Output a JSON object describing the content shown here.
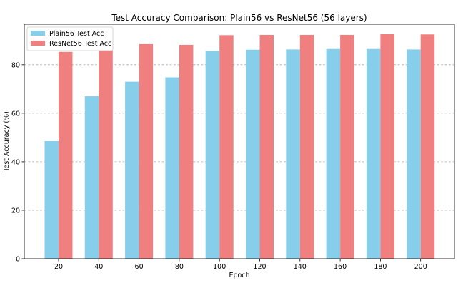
{
  "chart_data": {
    "type": "bar",
    "title": "Test Accuracy Comparison: Plain56 vs ResNet56 (56 layers)",
    "xlabel": "Epoch",
    "ylabel": "Test Accuracy (%)",
    "categories": [
      "20",
      "40",
      "60",
      "80",
      "100",
      "120",
      "140",
      "160",
      "180",
      "200"
    ],
    "series": [
      {
        "name": "Plain56 Test Acc",
        "color": "#87ceeb",
        "values": [
          48.5,
          67.0,
          73.0,
          74.8,
          85.7,
          86.2,
          86.3,
          86.5,
          86.5,
          86.3
        ]
      },
      {
        "name": "ResNet56 Test Acc",
        "color": "#f08080",
        "values": [
          85.3,
          86.1,
          88.5,
          88.2,
          92.2,
          92.3,
          92.3,
          92.3,
          92.6,
          92.5
        ]
      }
    ],
    "ylim": [
      0,
      96.7
    ],
    "yticks": [
      "0",
      "20",
      "40",
      "60",
      "80"
    ],
    "grid": "y-dashed",
    "legend_position": "top-left"
  }
}
